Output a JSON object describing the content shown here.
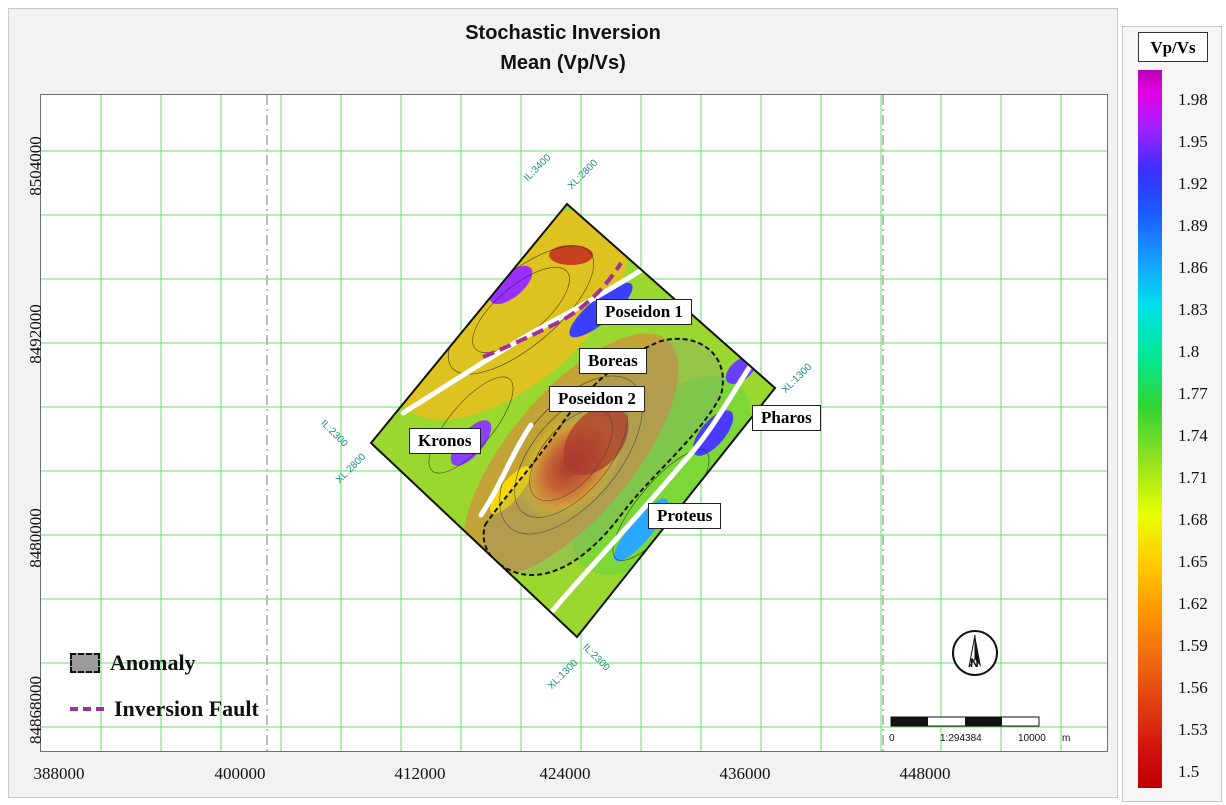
{
  "title_line1": "Stochastic Inversion",
  "title_line2": "Mean (Vp/Vs)",
  "y_ticks": [
    "8504000",
    "8492000",
    "8480000",
    "84868000"
  ],
  "x_ticks": [
    "388000",
    "400000",
    "412000",
    "424000",
    "436000",
    "448000"
  ],
  "survey_labels": {
    "top_il": "IL:3400",
    "top_xl": "XL:2800",
    "right_xl": "XL:1300",
    "left_il": "IL:2300",
    "left_xl": "XL:2800",
    "bottom_xl": "XL:1300",
    "bottom_il": "IL:2300"
  },
  "wells": {
    "poseidon1": "Poseidon 1",
    "boreas": "Boreas",
    "poseidon2": "Poseidon 2",
    "kronos": "Kronos",
    "pharos": "Pharos",
    "proteus": "Proteus"
  },
  "legend": {
    "anomaly": "Anomaly",
    "fault": "Inversion Fault"
  },
  "scale_bar": {
    "start": "0",
    "ratio": "1:294384",
    "end": "10000",
    "unit": "m"
  },
  "north_arrow": "N",
  "colorbar": {
    "title": "Vp/Vs",
    "labels": [
      "1.98",
      "1.95",
      "1.92",
      "1.89",
      "1.86",
      "1.83",
      "1.8",
      "1.77",
      "1.74",
      "1.71",
      "1.68",
      "1.65",
      "1.62",
      "1.59",
      "1.56",
      "1.53",
      "1.5"
    ]
  },
  "colors": {
    "grid": "#66e066",
    "anomaly_outline": "#111111",
    "fault": "#a0309a",
    "survey_label": "#1e8c8c"
  }
}
